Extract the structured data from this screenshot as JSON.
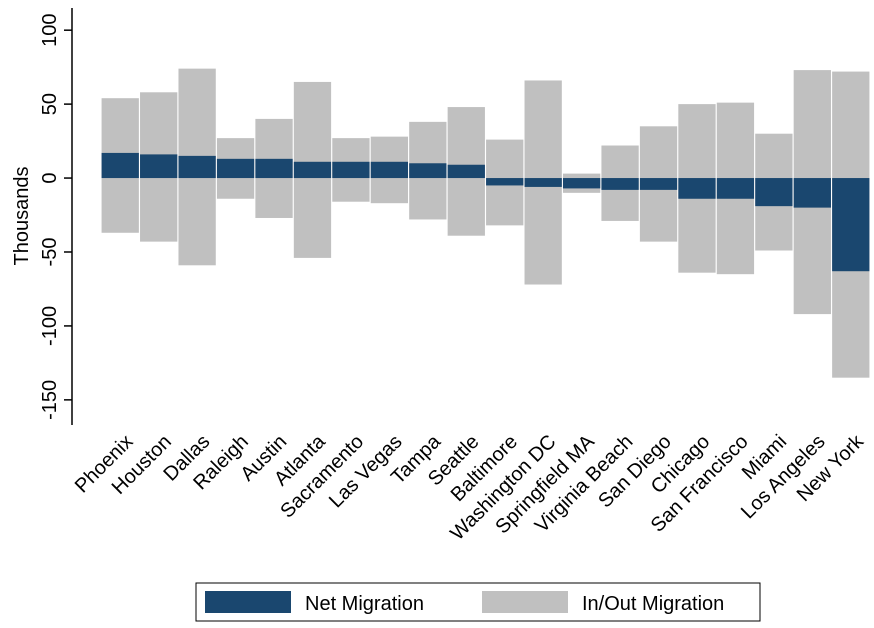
{
  "chart_data": {
    "type": "range_bar",
    "y_label": "Thousands",
    "categories": [
      "Phoenix",
      "Houston",
      "Dallas",
      "Raleigh",
      "Austin",
      "Atlanta",
      "Sacramento",
      "Las Vegas",
      "Tampa",
      "Seattle",
      "Baltimore",
      "Washington DC",
      "Springfield MA",
      "Virginia Beach",
      "San Diego",
      "Chicago",
      "San Francisco",
      "Miami",
      "Los Angeles",
      "New York"
    ],
    "series": [
      {
        "name": "Net Migration",
        "color": "#1a476f",
        "values": [
          17,
          16,
          15,
          13,
          13,
          11,
          11,
          11,
          10,
          9,
          -5,
          -6,
          -7,
          -8,
          -8,
          -14,
          -14,
          -19,
          -20,
          -63
        ]
      },
      {
        "name": "In/Out Migration",
        "color": "#c0c0c0",
        "values": [
          54,
          58,
          74,
          27,
          40,
          65,
          27,
          28,
          38,
          48,
          26,
          66,
          3,
          22,
          35,
          50,
          51,
          30,
          73,
          72
        ],
        "out_values": [
          -37,
          -43,
          -59,
          -14,
          -27,
          -54,
          -16,
          -17,
          -28,
          -39,
          -32,
          -72,
          -10,
          -29,
          -43,
          -64,
          -65,
          -49,
          -92,
          -135
        ]
      }
    ],
    "ylim": [
      -167,
      115
    ],
    "yticks": [
      -150,
      -100,
      -50,
      0,
      50,
      100
    ],
    "grid": false
  }
}
